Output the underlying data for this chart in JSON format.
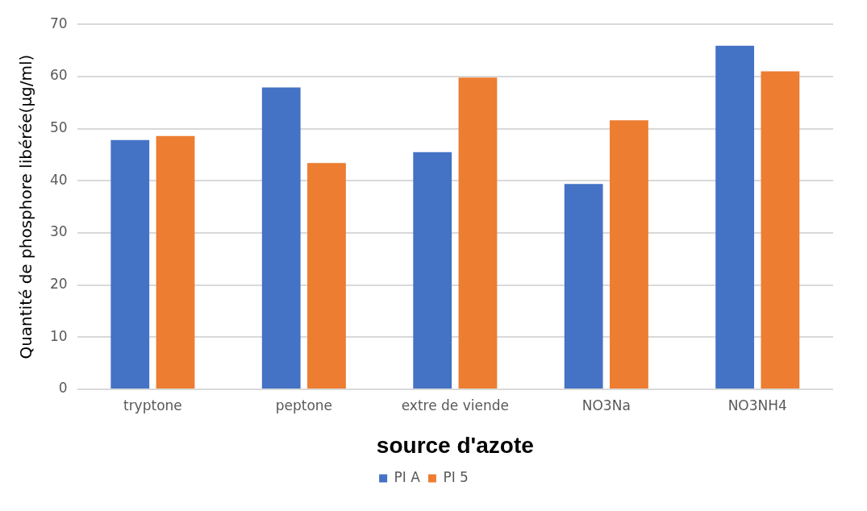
{
  "chart_data": {
    "type": "bar",
    "categories": [
      "tryptone",
      "peptone",
      "extre de viende",
      "NO3Na",
      "NO3NH4"
    ],
    "series": [
      {
        "name": "PI A",
        "color": "#4472c4",
        "values": [
          47.8,
          57.9,
          45.5,
          39.4,
          65.9
        ]
      },
      {
        "name": "PI 5",
        "color": "#ed7d31",
        "values": [
          48.6,
          43.4,
          59.8,
          51.6,
          61.0
        ]
      }
    ],
    "xlabel": "source d'azote",
    "ylabel": "Quantité de phosphore libérée(µg/ml)",
    "ylim": [
      0,
      70
    ],
    "yticks": [
      0,
      10,
      20,
      30,
      40,
      50,
      60,
      70
    ],
    "grid": "y",
    "legend": "bottom"
  }
}
